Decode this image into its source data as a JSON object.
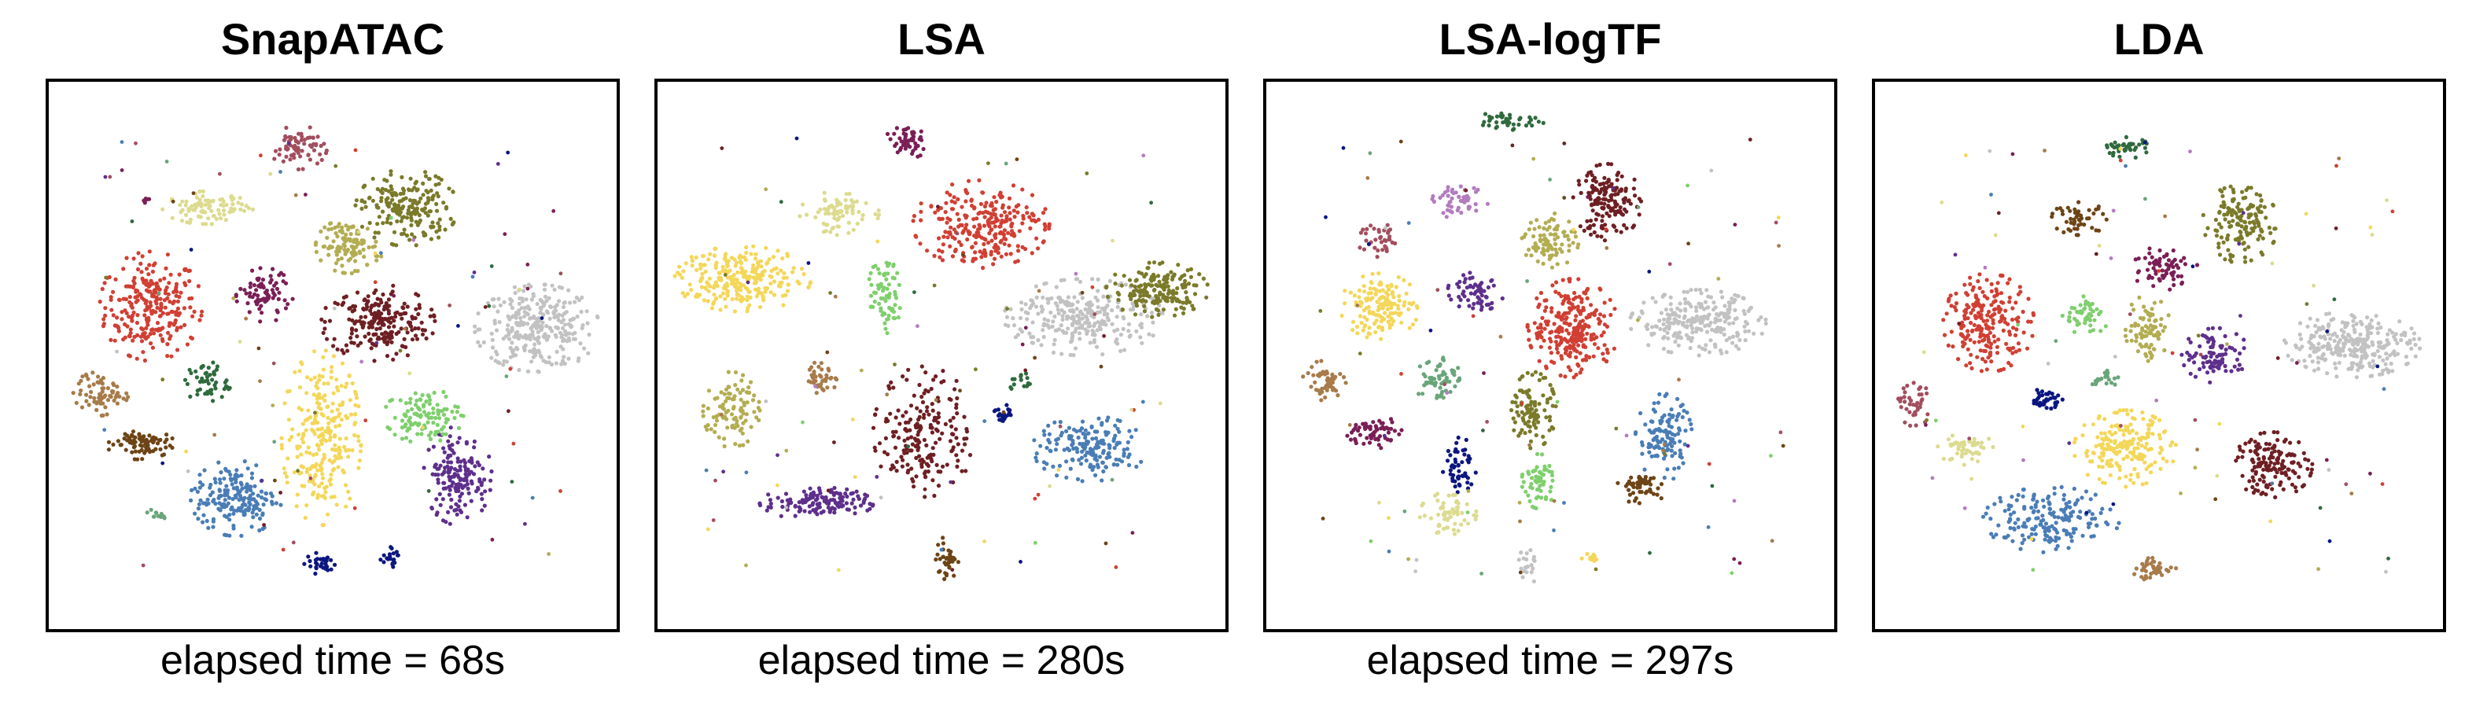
{
  "colors": {
    "red": "#d13f33",
    "maroon": "#6e1f23",
    "olive": "#7a7a2a",
    "light_olive": "#b3ad52",
    "khaki": "#dcdb8f",
    "yellow": "#f4d75a",
    "grey": "#c2c2c2",
    "steel_blue": "#4a7db6",
    "navy": "#0b1680",
    "purple": "#5e2f8c",
    "plum": "#7a1f56",
    "dark_green": "#2f6a3d",
    "light_green": "#7fcf6d",
    "sea_green": "#6aa57a",
    "brown": "#6d4416",
    "tan": "#a77b4a",
    "rose": "#a24e5e",
    "lilac": "#b27cbf"
  },
  "chart_data": [
    {
      "type": "scatter",
      "title": "SnapATAC",
      "caption": "elapsed time = 68s",
      "xlim": [
        0,
        100
      ],
      "ylim": [
        0,
        100
      ],
      "clusters": [
        {
          "color": "red",
          "cx": 18,
          "cy": 59,
          "rx": 9,
          "ry": 10,
          "n": 260
        },
        {
          "color": "grey",
          "cx": 86,
          "cy": 55,
          "rx": 11,
          "ry": 8,
          "n": 300
        },
        {
          "color": "maroon",
          "cx": 58,
          "cy": 56,
          "rx": 10,
          "ry": 7,
          "n": 220
        },
        {
          "color": "olive",
          "cx": 63,
          "cy": 77,
          "rx": 9,
          "ry": 7,
          "n": 200
        },
        {
          "color": "light_olive",
          "cx": 53,
          "cy": 70,
          "rx": 6,
          "ry": 5,
          "n": 110
        },
        {
          "color": "khaki",
          "cx": 28,
          "cy": 77,
          "rx": 8,
          "ry": 3,
          "n": 90
        },
        {
          "color": "rose",
          "cx": 44,
          "cy": 88,
          "rx": 5,
          "ry": 4,
          "n": 70
        },
        {
          "color": "plum",
          "cx": 38,
          "cy": 61,
          "rx": 5,
          "ry": 5,
          "n": 80
        },
        {
          "color": "yellow",
          "cx": 48,
          "cy": 35,
          "rx": 7,
          "ry": 16,
          "n": 260
        },
        {
          "color": "steel_blue",
          "cx": 33,
          "cy": 24,
          "rx": 8,
          "ry": 7,
          "n": 180
        },
        {
          "color": "purple",
          "cx": 72,
          "cy": 28,
          "rx": 6,
          "ry": 9,
          "n": 160
        },
        {
          "color": "light_green",
          "cx": 66,
          "cy": 39,
          "rx": 7,
          "ry": 5,
          "n": 110
        },
        {
          "color": "dark_green",
          "cx": 28,
          "cy": 45,
          "rx": 4,
          "ry": 4,
          "n": 50
        },
        {
          "color": "tan",
          "cx": 9,
          "cy": 43,
          "rx": 5,
          "ry": 4,
          "n": 70
        },
        {
          "color": "brown",
          "cx": 16,
          "cy": 34,
          "rx": 6,
          "ry": 3,
          "n": 80
        },
        {
          "color": "navy",
          "cx": 48,
          "cy": 12,
          "rx": 3,
          "ry": 2,
          "n": 30
        },
        {
          "color": "navy",
          "cx": 60,
          "cy": 13,
          "rx": 2,
          "ry": 2,
          "n": 20
        },
        {
          "color": "sea_green",
          "cx": 19,
          "cy": 21,
          "rx": 2,
          "ry": 1,
          "n": 12
        },
        {
          "color": "plum",
          "cx": 17,
          "cy": 78,
          "rx": 1,
          "ry": 1,
          "n": 6
        }
      ]
    },
    {
      "type": "scatter",
      "title": "LSA",
      "caption": "elapsed time = 280s",
      "xlim": [
        0,
        100
      ],
      "ylim": [
        0,
        100
      ],
      "clusters": [
        {
          "color": "yellow",
          "cx": 15,
          "cy": 64,
          "rx": 12,
          "ry": 6,
          "n": 260
        },
        {
          "color": "red",
          "cx": 57,
          "cy": 74,
          "rx": 12,
          "ry": 8,
          "n": 260
        },
        {
          "color": "grey",
          "cx": 75,
          "cy": 57,
          "rx": 14,
          "ry": 7,
          "n": 280
        },
        {
          "color": "olive",
          "cx": 88,
          "cy": 62,
          "rx": 9,
          "ry": 5,
          "n": 170
        },
        {
          "color": "khaki",
          "cx": 32,
          "cy": 76,
          "rx": 7,
          "ry": 4,
          "n": 80
        },
        {
          "color": "plum",
          "cx": 44,
          "cy": 89,
          "rx": 4,
          "ry": 3,
          "n": 50
        },
        {
          "color": "light_green",
          "cx": 40,
          "cy": 61,
          "rx": 3,
          "ry": 7,
          "n": 70
        },
        {
          "color": "light_olive",
          "cx": 13,
          "cy": 40,
          "rx": 5,
          "ry": 7,
          "n": 100
        },
        {
          "color": "tan",
          "cx": 29,
          "cy": 46,
          "rx": 3,
          "ry": 3,
          "n": 40
        },
        {
          "color": "maroon",
          "cx": 47,
          "cy": 36,
          "rx": 9,
          "ry": 12,
          "n": 200
        },
        {
          "color": "steel_blue",
          "cx": 76,
          "cy": 33,
          "rx": 10,
          "ry": 6,
          "n": 170
        },
        {
          "color": "navy",
          "cx": 61,
          "cy": 39,
          "rx": 2,
          "ry": 2,
          "n": 20
        },
        {
          "color": "purple",
          "cx": 28,
          "cy": 23,
          "rx": 10,
          "ry": 3,
          "n": 140
        },
        {
          "color": "brown",
          "cx": 51,
          "cy": 13,
          "rx": 2,
          "ry": 4,
          "n": 35
        },
        {
          "color": "dark_green",
          "cx": 64,
          "cy": 45,
          "rx": 2,
          "ry": 2,
          "n": 15
        }
      ]
    },
    {
      "type": "scatter",
      "title": "LSA-logTF",
      "caption": "elapsed time = 297s",
      "xlim": [
        0,
        100
      ],
      "ylim": [
        0,
        100
      ],
      "clusters": [
        {
          "color": "red",
          "cx": 54,
          "cy": 55,
          "rx": 8,
          "ry": 9,
          "n": 260
        },
        {
          "color": "grey",
          "cx": 76,
          "cy": 56,
          "rx": 12,
          "ry": 6,
          "n": 250
        },
        {
          "color": "maroon",
          "cx": 60,
          "cy": 78,
          "rx": 6,
          "ry": 7,
          "n": 160
        },
        {
          "color": "light_olive",
          "cx": 50,
          "cy": 71,
          "rx": 5,
          "ry": 5,
          "n": 90
        },
        {
          "color": "dark_green",
          "cx": 43,
          "cy": 93,
          "rx": 6,
          "ry": 2,
          "n": 40
        },
        {
          "color": "lilac",
          "cx": 34,
          "cy": 78,
          "rx": 5,
          "ry": 3,
          "n": 50
        },
        {
          "color": "rose",
          "cx": 20,
          "cy": 71,
          "rx": 4,
          "ry": 3,
          "n": 40
        },
        {
          "color": "yellow",
          "cx": 20,
          "cy": 59,
          "rx": 7,
          "ry": 6,
          "n": 150
        },
        {
          "color": "purple",
          "cx": 37,
          "cy": 62,
          "rx": 5,
          "ry": 4,
          "n": 60
        },
        {
          "color": "sea_green",
          "cx": 30,
          "cy": 46,
          "rx": 4,
          "ry": 5,
          "n": 60
        },
        {
          "color": "tan",
          "cx": 10,
          "cy": 45,
          "rx": 4,
          "ry": 4,
          "n": 50
        },
        {
          "color": "plum",
          "cx": 19,
          "cy": 36,
          "rx": 5,
          "ry": 3,
          "n": 60
        },
        {
          "color": "olive",
          "cx": 47,
          "cy": 40,
          "rx": 4,
          "ry": 7,
          "n": 110
        },
        {
          "color": "light_green",
          "cx": 48,
          "cy": 27,
          "rx": 3,
          "ry": 5,
          "n": 60
        },
        {
          "color": "steel_blue",
          "cx": 70,
          "cy": 35,
          "rx": 5,
          "ry": 8,
          "n": 120
        },
        {
          "color": "navy",
          "cx": 34,
          "cy": 30,
          "rx": 3,
          "ry": 5,
          "n": 50
        },
        {
          "color": "brown",
          "cx": 66,
          "cy": 26,
          "rx": 5,
          "ry": 3,
          "n": 50
        },
        {
          "color": "khaki",
          "cx": 32,
          "cy": 21,
          "rx": 5,
          "ry": 4,
          "n": 60
        },
        {
          "color": "grey",
          "cx": 46,
          "cy": 12,
          "rx": 2,
          "ry": 4,
          "n": 20
        },
        {
          "color": "yellow",
          "cx": 57,
          "cy": 13,
          "rx": 3,
          "ry": 1,
          "n": 12
        }
      ]
    },
    {
      "type": "scatter",
      "title": "LDA",
      "caption": "",
      "xlim": [
        0,
        100
      ],
      "ylim": [
        0,
        100
      ],
      "clusters": [
        {
          "color": "red",
          "cx": 20,
          "cy": 56,
          "rx": 8,
          "ry": 9,
          "n": 220
        },
        {
          "color": "grey",
          "cx": 84,
          "cy": 52,
          "rx": 12,
          "ry": 6,
          "n": 280
        },
        {
          "color": "olive",
          "cx": 64,
          "cy": 74,
          "rx": 7,
          "ry": 7,
          "n": 150
        },
        {
          "color": "dark_green",
          "cx": 44,
          "cy": 88,
          "rx": 5,
          "ry": 2,
          "n": 40
        },
        {
          "color": "brown",
          "cx": 36,
          "cy": 75,
          "rx": 5,
          "ry": 3,
          "n": 50
        },
        {
          "color": "plum",
          "cx": 51,
          "cy": 66,
          "rx": 6,
          "ry": 4,
          "n": 70
        },
        {
          "color": "light_olive",
          "cx": 48,
          "cy": 55,
          "rx": 4,
          "ry": 6,
          "n": 80
        },
        {
          "color": "purple",
          "cx": 60,
          "cy": 50,
          "rx": 6,
          "ry": 5,
          "n": 90
        },
        {
          "color": "light_green",
          "cx": 37,
          "cy": 57,
          "rx": 4,
          "ry": 4,
          "n": 50
        },
        {
          "color": "rose",
          "cx": 7,
          "cy": 41,
          "rx": 3,
          "ry": 4,
          "n": 40
        },
        {
          "color": "navy",
          "cx": 30,
          "cy": 42,
          "rx": 3,
          "ry": 2,
          "n": 40
        },
        {
          "color": "yellow",
          "cx": 44,
          "cy": 33,
          "rx": 9,
          "ry": 7,
          "n": 200
        },
        {
          "color": "khaki",
          "cx": 16,
          "cy": 33,
          "rx": 5,
          "ry": 3,
          "n": 50
        },
        {
          "color": "maroon",
          "cx": 70,
          "cy": 30,
          "rx": 7,
          "ry": 6,
          "n": 150
        },
        {
          "color": "steel_blue",
          "cx": 31,
          "cy": 20,
          "rx": 12,
          "ry": 6,
          "n": 180
        },
        {
          "color": "tan",
          "cx": 49,
          "cy": 11,
          "rx": 5,
          "ry": 2,
          "n": 40
        },
        {
          "color": "sea_green",
          "cx": 40,
          "cy": 46,
          "rx": 3,
          "ry": 2,
          "n": 20
        }
      ]
    }
  ]
}
